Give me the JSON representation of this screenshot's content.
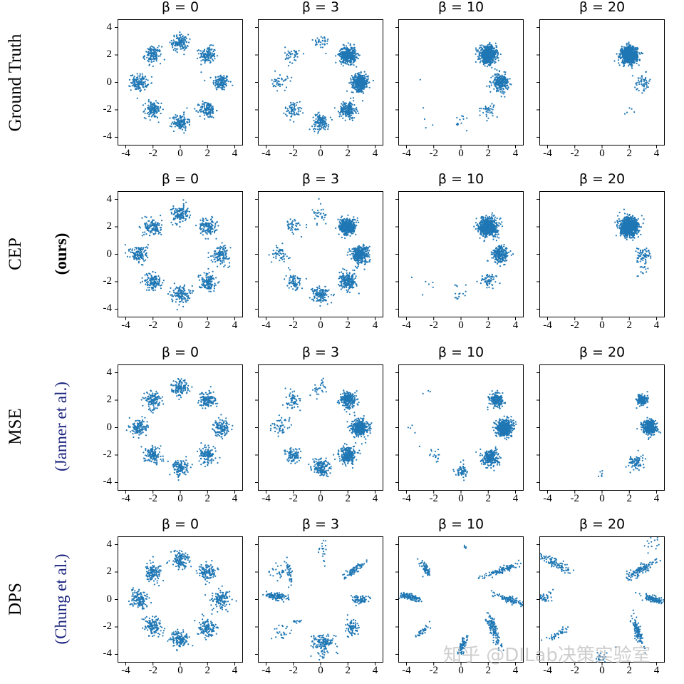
{
  "row_labels": [
    {
      "main": "Ground Truth",
      "sub": ""
    },
    {
      "main": "CEP",
      "sub": "(ours)"
    },
    {
      "main": "MSE",
      "sub": "(Janner et al.)"
    },
    {
      "main": "DPS",
      "sub": "(Chung et al.)"
    }
  ],
  "watermark": "知乎 @DILab决策实验室",
  "chart_data": {
    "type": "scatter",
    "layout": "4x4 grid",
    "point_color": "#1f77b4",
    "xlim": [
      -4.6,
      4.6
    ],
    "ylim": [
      -4.6,
      4.6
    ],
    "x_ticks": [
      "-4",
      "-2",
      "0",
      "2",
      "4"
    ],
    "y_ticks": [
      "4",
      "2",
      "0",
      "-2",
      "-4"
    ],
    "grid": false,
    "column_titles": [
      "β = 0",
      "β = 3",
      "β = 10",
      "β = 20"
    ],
    "panels": [
      {
        "row": 0,
        "title": "β = 0",
        "clusters": [
          {
            "c": [
              3,
              0
            ],
            "s": 0.3,
            "n": 130
          },
          {
            "c": [
              2,
              2
            ],
            "s": 0.3,
            "n": 130
          },
          {
            "c": [
              0,
              2.9
            ],
            "s": 0.3,
            "n": 130
          },
          {
            "c": [
              -2,
              2
            ],
            "s": 0.3,
            "n": 130
          },
          {
            "c": [
              -3,
              0
            ],
            "s": 0.3,
            "n": 130
          },
          {
            "c": [
              -2,
              -2
            ],
            "s": 0.3,
            "n": 130
          },
          {
            "c": [
              0,
              -2.9
            ],
            "s": 0.3,
            "n": 130
          },
          {
            "c": [
              2,
              -2
            ],
            "s": 0.3,
            "n": 130
          }
        ]
      },
      {
        "row": 0,
        "title": "β = 3",
        "clusters": [
          {
            "c": [
              2.9,
              0
            ],
            "s": 0.3,
            "n": 380
          },
          {
            "c": [
              2,
              2
            ],
            "s": 0.3,
            "n": 420
          },
          {
            "c": [
              0,
              2.9
            ],
            "s": 0.3,
            "n": 35
          },
          {
            "c": [
              -2,
              2
            ],
            "s": 0.3,
            "n": 40
          },
          {
            "c": [
              -3,
              0
            ],
            "s": 0.3,
            "n": 40
          },
          {
            "c": [
              -2,
              -2
            ],
            "s": 0.3,
            "n": 70
          },
          {
            "c": [
              0,
              -2.9
            ],
            "s": 0.3,
            "n": 130
          },
          {
            "c": [
              2,
              -2
            ],
            "s": 0.3,
            "n": 200
          }
        ]
      },
      {
        "row": 0,
        "title": "β = 10",
        "clusters": [
          {
            "c": [
              2,
              2
            ],
            "s": 0.3,
            "n": 750
          },
          {
            "c": [
              2.9,
              0
            ],
            "s": 0.3,
            "n": 250
          },
          {
            "c": [
              2,
              -2
            ],
            "s": 0.25,
            "n": 40
          },
          {
            "c": [
              0,
              -2.9
            ],
            "s": 0.3,
            "n": 12
          },
          {
            "c": [
              -2.5,
              -2.5
            ],
            "s": 0.4,
            "n": 4
          },
          {
            "c": [
              -3,
              0
            ],
            "s": 0.1,
            "n": 1
          }
        ]
      },
      {
        "row": 0,
        "title": "β = 20",
        "clusters": [
          {
            "c": [
              2,
              2
            ],
            "s": 0.3,
            "n": 850
          },
          {
            "c": [
              3,
              0
            ],
            "s": 0.3,
            "n": 55
          },
          {
            "c": [
              1.9,
              -2.2
            ],
            "s": 0.2,
            "n": 5
          }
        ]
      },
      {
        "row": 1,
        "title": "β = 0",
        "clusters": [
          {
            "c": [
              3,
              0
            ],
            "s": 0.32,
            "n": 130
          },
          {
            "c": [
              2,
              2
            ],
            "s": 0.32,
            "n": 130
          },
          {
            "c": [
              0,
              2.9
            ],
            "s": 0.32,
            "n": 130
          },
          {
            "c": [
              -2,
              2
            ],
            "s": 0.32,
            "n": 130
          },
          {
            "c": [
              -3,
              0
            ],
            "s": 0.32,
            "n": 130
          },
          {
            "c": [
              -2,
              -2
            ],
            "s": 0.32,
            "n": 130
          },
          {
            "c": [
              0,
              -2.9
            ],
            "s": 0.32,
            "n": 130
          },
          {
            "c": [
              2,
              -2
            ],
            "s": 0.32,
            "n": 130
          }
        ]
      },
      {
        "row": 1,
        "title": "β = 3",
        "clusters": [
          {
            "c": [
              2.9,
              0
            ],
            "s": 0.32,
            "n": 360
          },
          {
            "c": [
              2,
              2
            ],
            "s": 0.3,
            "n": 420
          },
          {
            "c": [
              0,
              2.9
            ],
            "s": 0.3,
            "n": 30
          },
          {
            "c": [
              -2,
              2
            ],
            "s": 0.3,
            "n": 45
          },
          {
            "c": [
              -3,
              0
            ],
            "s": 0.3,
            "n": 50
          },
          {
            "c": [
              -2,
              -2
            ],
            "s": 0.3,
            "n": 70
          },
          {
            "c": [
              0,
              -2.9
            ],
            "s": 0.3,
            "n": 130
          },
          {
            "c": [
              2,
              -2
            ],
            "s": 0.3,
            "n": 200
          }
        ]
      },
      {
        "row": 1,
        "title": "β = 10",
        "clusters": [
          {
            "c": [
              2,
              2
            ],
            "s": 0.32,
            "n": 750
          },
          {
            "c": [
              2.9,
              0
            ],
            "s": 0.3,
            "n": 250
          },
          {
            "c": [
              2,
              -2
            ],
            "s": 0.3,
            "n": 60
          },
          {
            "c": [
              0,
              -2.9
            ],
            "s": 0.35,
            "n": 15
          },
          {
            "c": [
              -2.5,
              -2
            ],
            "s": 0.5,
            "n": 6
          }
        ]
      },
      {
        "row": 1,
        "title": "β = 20",
        "clusters": [
          {
            "c": [
              2,
              2
            ],
            "s": 0.33,
            "n": 850
          },
          {
            "c": [
              3,
              0
            ],
            "s": 0.3,
            "n": 70
          },
          {
            "c": [
              3,
              -1
            ],
            "s": 0.3,
            "n": 15
          }
        ]
      },
      {
        "row": 2,
        "title": "β = 0",
        "clusters": [
          {
            "c": [
              3,
              0
            ],
            "s": 0.3,
            "n": 130
          },
          {
            "c": [
              2,
              2
            ],
            "s": 0.3,
            "n": 130
          },
          {
            "c": [
              0,
              2.9
            ],
            "s": 0.3,
            "n": 130
          },
          {
            "c": [
              -2,
              2
            ],
            "s": 0.3,
            "n": 130
          },
          {
            "c": [
              -3,
              0
            ],
            "s": 0.3,
            "n": 130
          },
          {
            "c": [
              -2,
              -2
            ],
            "s": 0.3,
            "n": 130
          },
          {
            "c": [
              0,
              -2.9
            ],
            "s": 0.3,
            "n": 130
          },
          {
            "c": [
              2,
              -2
            ],
            "s": 0.3,
            "n": 130
          }
        ]
      },
      {
        "row": 2,
        "title": "β = 3",
        "clusters": [
          {
            "c": [
              2.9,
              0
            ],
            "s": 0.3,
            "n": 380
          },
          {
            "c": [
              2,
              2
            ],
            "s": 0.3,
            "n": 230
          },
          {
            "c": [
              0,
              2.9
            ],
            "s": 0.3,
            "n": 30
          },
          {
            "c": [
              -2,
              2
            ],
            "s": 0.3,
            "n": 60
          },
          {
            "c": [
              -3,
              0
            ],
            "s": 0.3,
            "n": 50
          },
          {
            "c": [
              -2,
              -2
            ],
            "s": 0.3,
            "n": 100
          },
          {
            "c": [
              0,
              -2.9
            ],
            "s": 0.3,
            "n": 160
          },
          {
            "c": [
              2,
              -2
            ],
            "s": 0.3,
            "n": 260
          }
        ]
      },
      {
        "row": 2,
        "title": "β = 10",
        "clusters": [
          {
            "c": [
              2.6,
              2
            ],
            "s": 0.25,
            "n": 200
          },
          {
            "c": [
              3.2,
              0
            ],
            "s": 0.3,
            "n": 500
          },
          {
            "c": [
              2.2,
              -2.2
            ],
            "s": 0.3,
            "n": 250
          },
          {
            "c": [
              0,
              -3.2
            ],
            "s": 0.25,
            "n": 60
          },
          {
            "c": [
              -2,
              -2
            ],
            "s": 0.3,
            "n": 20
          },
          {
            "c": [
              -3.5,
              0
            ],
            "s": 0.2,
            "n": 4
          },
          {
            "c": [
              -2.5,
              2.5
            ],
            "s": 0.2,
            "n": 3
          }
        ]
      },
      {
        "row": 2,
        "title": "β = 20",
        "clusters": [
          {
            "c": [
              2.9,
              2
            ],
            "s": 0.2,
            "n": 180
          },
          {
            "c": [
              3.5,
              0
            ],
            "s": 0.25,
            "n": 450
          },
          {
            "c": [
              2.5,
              -2.5
            ],
            "s": 0.3,
            "n": 80
          },
          {
            "c": [
              0,
              -3.6
            ],
            "s": 0.25,
            "n": 6
          }
        ]
      },
      {
        "row": 3,
        "title": "β = 0",
        "clusters": [
          {
            "c": [
              3,
              0
            ],
            "s": 0.33,
            "n": 130
          },
          {
            "c": [
              2,
              2
            ],
            "s": 0.33,
            "n": 130
          },
          {
            "c": [
              0,
              2.9
            ],
            "s": 0.33,
            "n": 130
          },
          {
            "c": [
              -2,
              2
            ],
            "s": 0.33,
            "n": 130
          },
          {
            "c": [
              -3,
              0
            ],
            "s": 0.33,
            "n": 130
          },
          {
            "c": [
              -2,
              -2
            ],
            "s": 0.33,
            "n": 130
          },
          {
            "c": [
              0,
              -2.9
            ],
            "s": 0.33,
            "n": 130
          },
          {
            "c": [
              2,
              -2
            ],
            "s": 0.33,
            "n": 130
          }
        ]
      },
      {
        "row": 3,
        "title": "β = 3",
        "clusters": [
          {
            "c": [
              -3.2,
              0.2
            ],
            "sx": 0.5,
            "sy": 0.12,
            "rot": -5,
            "n": 120
          },
          {
            "c": [
              -2.3,
              1.9
            ],
            "sx": 0.4,
            "sy": 0.08,
            "rot": -80,
            "n": 40
          },
          {
            "c": [
              -3.2,
              2.1
            ],
            "s": 0.3,
            "n": 25
          },
          {
            "c": [
              0.2,
              3.6
            ],
            "sx": 0.15,
            "sy": 0.4,
            "n": 20
          },
          {
            "c": [
              2.4,
              2.1
            ],
            "sx": 0.45,
            "sy": 0.1,
            "rot": 35,
            "n": 80
          },
          {
            "c": [
              2.9,
              0
            ],
            "sx": 0.35,
            "sy": 0.15,
            "n": 80
          },
          {
            "c": [
              2.3,
              -2.1
            ],
            "sx": 0.25,
            "sy": 0.3,
            "n": 80
          },
          {
            "c": [
              0.2,
              -3.1
            ],
            "sx": 0.35,
            "sy": 0.25,
            "n": 120
          },
          {
            "c": [
              -1.8,
              -1.6
            ],
            "sx": 0.15,
            "sy": 0.05,
            "n": 15
          },
          {
            "c": [
              -2.8,
              -2.4
            ],
            "s": 0.3,
            "n": 25
          },
          {
            "c": [
              0.1,
              -3.8
            ],
            "s": 0.4,
            "n": 30
          }
        ]
      },
      {
        "row": 3,
        "title": "β = 10",
        "clusters": [
          {
            "c": [
              -3.8,
              0.2
            ],
            "sx": 0.45,
            "sy": 0.12,
            "rot": -10,
            "n": 120
          },
          {
            "c": [
              -2.6,
              2.2
            ],
            "sx": 0.35,
            "sy": 0.12,
            "rot": -60,
            "n": 60
          },
          {
            "c": [
              2.9,
              2.1
            ],
            "sx": 0.8,
            "sy": 0.1,
            "rot": 20,
            "n": 100
          },
          {
            "c": [
              3.6,
              0
            ],
            "sx": 0.6,
            "sy": 0.12,
            "rot": -20,
            "n": 100
          },
          {
            "c": [
              2.4,
              -2.2
            ],
            "sx": 0.7,
            "sy": 0.15,
            "rot": -70,
            "n": 130
          },
          {
            "c": [
              0.1,
              -3.4
            ],
            "sx": 0.35,
            "sy": 0.12,
            "rot": 70,
            "n": 90
          },
          {
            "c": [
              -2.8,
              -2.3
            ],
            "sx": 0.4,
            "sy": 0.1,
            "rot": 40,
            "n": 35
          },
          {
            "c": [
              0.3,
              3.8
            ],
            "s": 0.1,
            "n": 5
          }
        ]
      },
      {
        "row": 3,
        "title": "β = 20",
        "clusters": [
          {
            "c": [
              -3.4,
              2.6
            ],
            "sx": 0.7,
            "sy": 0.15,
            "rot": -30,
            "n": 100
          },
          {
            "c": [
              -4.2,
              0.2
            ],
            "sx": 0.3,
            "sy": 0.25,
            "n": 40
          },
          {
            "c": [
              2.9,
              2.2
            ],
            "sx": 0.6,
            "sy": 0.15,
            "rot": 30,
            "n": 120
          },
          {
            "c": [
              3.9,
              0
            ],
            "sx": 0.5,
            "sy": 0.12,
            "rot": -15,
            "n": 100
          },
          {
            "c": [
              2.6,
              -2.3
            ],
            "sx": 0.6,
            "sy": 0.12,
            "rot": -70,
            "n": 110
          },
          {
            "c": [
              -3.2,
              -2.5
            ],
            "sx": 0.5,
            "sy": 0.1,
            "rot": 25,
            "n": 40
          },
          {
            "c": [
              0,
              -4.2
            ],
            "s": 0.3,
            "n": 25
          },
          {
            "c": [
              3.8,
              4
            ],
            "s": 0.3,
            "n": 15
          }
        ]
      }
    ]
  }
}
